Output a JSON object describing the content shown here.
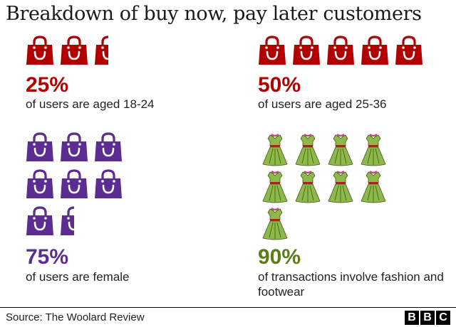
{
  "title": "Breakdown of buy now, pay later customers",
  "colors": {
    "age_bag": "#b00000",
    "female_bag": "#5c2d91",
    "female_text": "#5c2d91",
    "dress": "#8db84a",
    "fashion_text": "#5a7d16"
  },
  "icons": {
    "bag": "shopping-bag-icon",
    "dress": "dress-icon"
  },
  "chart_data": {
    "type": "pictogram",
    "panels": [
      {
        "id": "age-18-24",
        "value_label": "25%",
        "value": 25,
        "icon_units": 2.5,
        "icon": "bag",
        "description": "of users are aged 18-24"
      },
      {
        "id": "age-25-36",
        "value_label": "50%",
        "value": 50,
        "icon_units": 5,
        "icon": "bag",
        "description": "of users are aged 25-36"
      },
      {
        "id": "female",
        "value_label": "75%",
        "value": 75,
        "icon_units": 7.5,
        "icon": "bag",
        "description": "of users are female"
      },
      {
        "id": "fashion",
        "value_label": "90%",
        "value": 90,
        "icon_units": 9,
        "icon": "dress",
        "description": "of transactions involve fashion and footwear"
      }
    ]
  },
  "footer": {
    "source": "Source: The Woolard Review",
    "logo_letters": [
      "B",
      "B",
      "C"
    ]
  }
}
